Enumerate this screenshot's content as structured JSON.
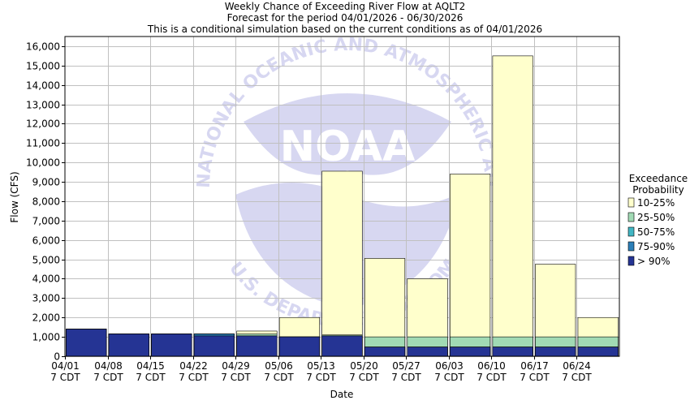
{
  "chart_data": {
    "type": "bar",
    "title": "Weekly Chance of Exceeding River Flow at AQLT2",
    "subtitle_1": "Forecast for the period 04/01/2026 - 06/30/2026",
    "subtitle_2": "This is a conditional simulation based on the current conditions as of 04/01/2026",
    "xlabel": "Date",
    "ylabel": "Flow (CFS)",
    "ylim": [
      0,
      16500
    ],
    "yticks": [
      0,
      1000,
      2000,
      3000,
      4000,
      5000,
      6000,
      7000,
      8000,
      9000,
      10000,
      11000,
      12000,
      13000,
      14000,
      15000,
      16000
    ],
    "ytick_labels": [
      "0",
      "1,000",
      "2,000",
      "3,000",
      "4,000",
      "5,000",
      "6,000",
      "7,000",
      "8,000",
      "9,000",
      "10,000",
      "11,000",
      "12,000",
      "13,000",
      "14,000",
      "15,000",
      "16,000"
    ],
    "categories": [
      {
        "line1": "04/01",
        "line2": "7 CDT"
      },
      {
        "line1": "04/08",
        "line2": "7 CDT"
      },
      {
        "line1": "04/15",
        "line2": "7 CDT"
      },
      {
        "line1": "04/22",
        "line2": "7 CDT"
      },
      {
        "line1": "04/29",
        "line2": "7 CDT"
      },
      {
        "line1": "05/06",
        "line2": "7 CDT"
      },
      {
        "line1": "05/13",
        "line2": "7 CDT"
      },
      {
        "line1": "05/20",
        "line2": "7 CDT"
      },
      {
        "line1": "05/27",
        "line2": "7 CDT"
      },
      {
        "line1": "06/03",
        "line2": "7 CDT"
      },
      {
        "line1": "06/10",
        "line2": "7 CDT"
      },
      {
        "line1": "06/17",
        "line2": "7 CDT"
      },
      {
        "line1": "06/24",
        "line2": "7 CDT"
      }
    ],
    "legend_title_1": "Exceedance",
    "legend_title_2": "Probability",
    "legend_placement": "right",
    "grid": true,
    "series": [
      {
        "name": "10-25%",
        "color": "#ffffcc",
        "values": [
          1400,
          1150,
          1150,
          1150,
          1300,
          2000,
          9550,
          5050,
          4000,
          9400,
          15500,
          4750,
          2000
        ]
      },
      {
        "name": "25-50%",
        "color": "#a1dab4",
        "values": [
          1400,
          1150,
          1150,
          1150,
          1150,
          1000,
          1100,
          1000,
          1000,
          1000,
          1000,
          1000,
          1000
        ]
      },
      {
        "name": "50-75%",
        "color": "#41b6c4",
        "values": [
          1400,
          1150,
          1150,
          1150,
          1050,
          1000,
          1050,
          475,
          475,
          475,
          475,
          475,
          475
        ]
      },
      {
        "name": "75-90%",
        "color": "#2c7fb8",
        "values": [
          1400,
          1150,
          1150,
          1150,
          1050,
          1000,
          1050,
          475,
          475,
          475,
          475,
          475,
          475
        ]
      },
      {
        "name": "> 90%",
        "color": "#253494",
        "values": [
          1400,
          1150,
          1150,
          1050,
          1050,
          1000,
          1050,
          475,
          475,
          475,
          475,
          475,
          475
        ]
      }
    ]
  },
  "watermark": {
    "logo_text": "NOAA",
    "ring_text": "NATIONAL OCEANIC AND ATMOSPHERIC ADMINISTRATION",
    "ring_text_bottom": "U.S. DEPARTMENT OF COMMERCE",
    "color": "#b8b8e6"
  }
}
